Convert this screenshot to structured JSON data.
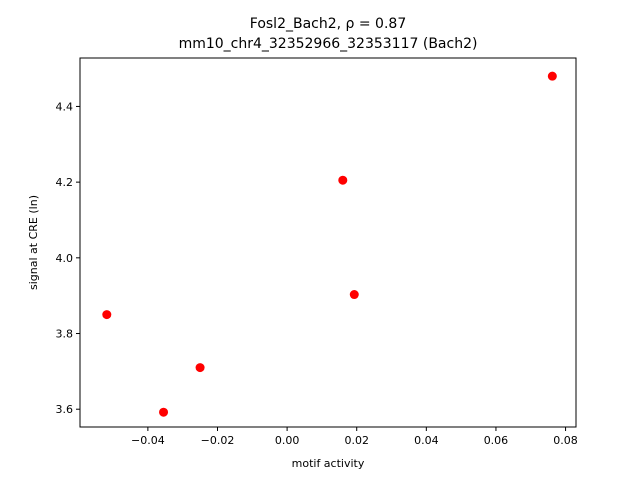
{
  "chart_data": {
    "type": "scatter",
    "title_line1": "Fosl2_Bach2, ρ = 0.87",
    "title_line2": "mm10_chr4_32352966_32353117 (Bach2)",
    "xlabel": "motif activity",
    "ylabel": "signal at CRE (ln)",
    "xlim": [
      -0.0595,
      0.083
    ],
    "ylim": [
      3.553,
      4.528
    ],
    "xticks": [
      -0.04,
      -0.02,
      0.0,
      0.02,
      0.04,
      0.06,
      0.08
    ],
    "xtick_labels": [
      "−0.04",
      "−0.02",
      "0.00",
      "0.02",
      "0.04",
      "0.06",
      "0.08"
    ],
    "yticks": [
      3.6,
      3.8,
      4.0,
      4.2,
      4.4
    ],
    "ytick_labels": [
      "3.6",
      "3.8",
      "4.0",
      "4.2",
      "4.4"
    ],
    "grid": false,
    "marker_color": "#ff0000",
    "points": [
      {
        "x": -0.0518,
        "y": 3.85
      },
      {
        "x": -0.0355,
        "y": 3.592
      },
      {
        "x": -0.025,
        "y": 3.71
      },
      {
        "x": 0.016,
        "y": 4.205
      },
      {
        "x": 0.0193,
        "y": 3.903
      },
      {
        "x": 0.0762,
        "y": 4.48
      }
    ]
  }
}
